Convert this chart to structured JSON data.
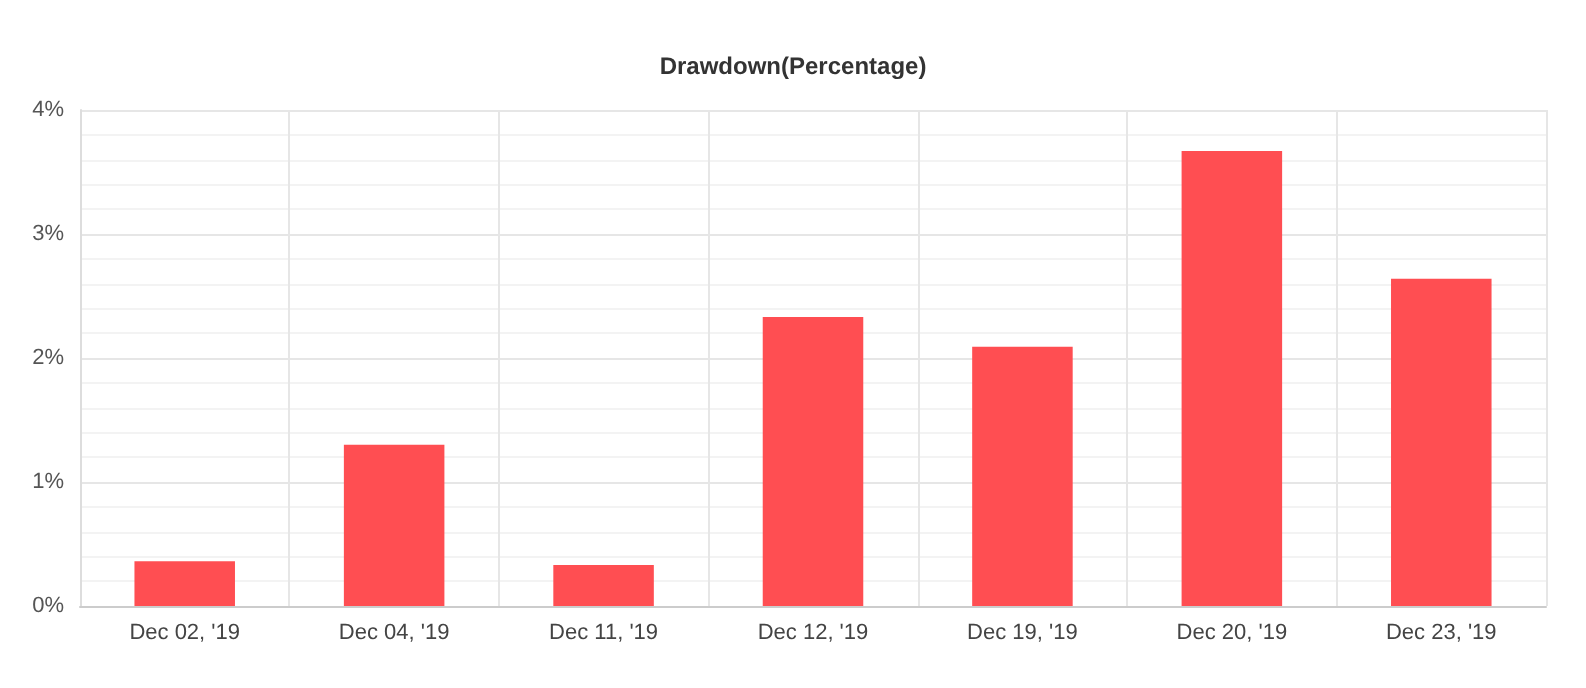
{
  "chart_data": {
    "type": "bar",
    "title": "Drawdown(Percentage)",
    "categories": [
      "Dec 02, '19",
      "Dec 04, '19",
      "Dec 11, '19",
      "Dec 12, '19",
      "Dec 19, '19",
      "Dec 20, '19",
      "Dec 23, '19"
    ],
    "values": [
      0.36,
      1.3,
      0.33,
      2.33,
      2.09,
      3.67,
      2.64
    ],
    "color": "#ff4a4f",
    "ylim": [
      0,
      4
    ],
    "yticks": [
      {
        "value": 0,
        "label": "0%"
      },
      {
        "value": 1,
        "label": "1%"
      },
      {
        "value": 2,
        "label": "2%"
      },
      {
        "value": 3,
        "label": "3%"
      },
      {
        "value": 4,
        "label": "4%"
      }
    ],
    "grid": true
  }
}
